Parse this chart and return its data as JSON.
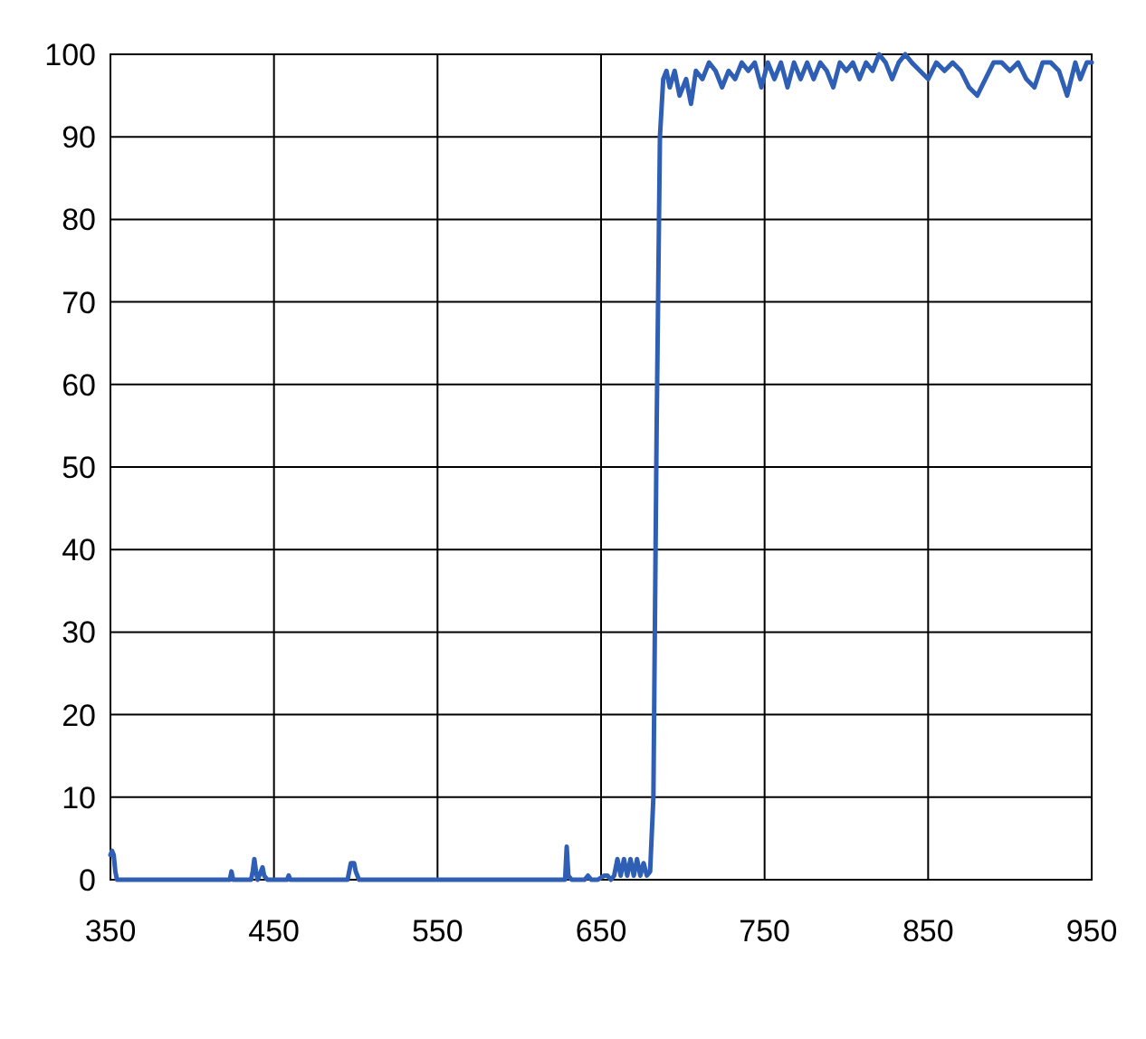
{
  "chart_data": {
    "type": "line",
    "xlim": [
      350,
      950
    ],
    "ylim": [
      0,
      100
    ],
    "xticks": [
      350,
      450,
      550,
      650,
      750,
      850,
      950
    ],
    "yticks": [
      0,
      10,
      20,
      30,
      40,
      50,
      60,
      70,
      80,
      90,
      100
    ],
    "grid": true,
    "line_style": "solid",
    "marker": "none",
    "series": [
      {
        "color": "#2e5fb5",
        "x": [
          350,
          351,
          352,
          353,
          354,
          356,
          360,
          380,
          400,
          420,
          423,
          424,
          425,
          430,
          436,
          437,
          438,
          439,
          440,
          442,
          443,
          444,
          446,
          455,
          458,
          459,
          460,
          470,
          480,
          490,
          495,
          497,
          499,
          500,
          502,
          505,
          520,
          540,
          560,
          580,
          600,
          610,
          625,
          628,
          629,
          630,
          632,
          635,
          640,
          642,
          644,
          648,
          652,
          654,
          656,
          658,
          660,
          662,
          664,
          666,
          668,
          670,
          672,
          674,
          676,
          678,
          680,
          682,
          684,
          686,
          688,
          690,
          692,
          695,
          698,
          702,
          705,
          708,
          712,
          716,
          720,
          724,
          728,
          732,
          736,
          740,
          744,
          748,
          752,
          756,
          760,
          764,
          768,
          772,
          776,
          780,
          784,
          788,
          792,
          796,
          800,
          804,
          808,
          812,
          816,
          820,
          824,
          828,
          832,
          836,
          840,
          845,
          850,
          855,
          860,
          865,
          870,
          875,
          880,
          885,
          890,
          895,
          900,
          905,
          910,
          915,
          920,
          925,
          930,
          935,
          940,
          943,
          947,
          950
        ],
        "values": [
          3,
          3.5,
          3,
          1,
          0,
          0,
          0,
          0,
          0,
          0,
          0,
          1,
          0,
          0,
          0,
          1,
          2.5,
          1,
          0,
          1,
          1.5,
          0.5,
          0,
          0,
          0,
          0.5,
          0,
          0,
          0,
          0,
          0,
          2,
          2,
          1,
          0,
          0,
          0,
          0,
          0,
          0,
          0,
          0,
          0,
          0,
          4,
          0.5,
          0,
          0,
          0,
          0.5,
          0,
          0,
          0.5,
          0.5,
          0,
          0.5,
          2.5,
          0.5,
          2.5,
          0.5,
          2.5,
          0.5,
          2.5,
          0.5,
          2,
          0.5,
          1,
          10,
          55,
          90,
          97,
          98,
          96,
          98,
          95,
          97,
          94,
          98,
          97,
          99,
          98,
          96,
          98,
          97,
          99,
          98,
          99,
          96,
          99,
          97,
          99,
          96,
          99,
          97,
          99,
          97,
          99,
          98,
          96,
          99,
          98,
          99,
          97,
          99,
          98,
          100,
          99,
          97,
          99,
          100,
          99,
          98,
          97,
          99,
          98,
          99,
          98,
          96,
          95,
          97,
          99,
          99,
          98,
          99,
          97,
          96,
          99,
          99,
          98,
          95,
          99,
          97,
          99,
          99
        ]
      }
    ]
  }
}
